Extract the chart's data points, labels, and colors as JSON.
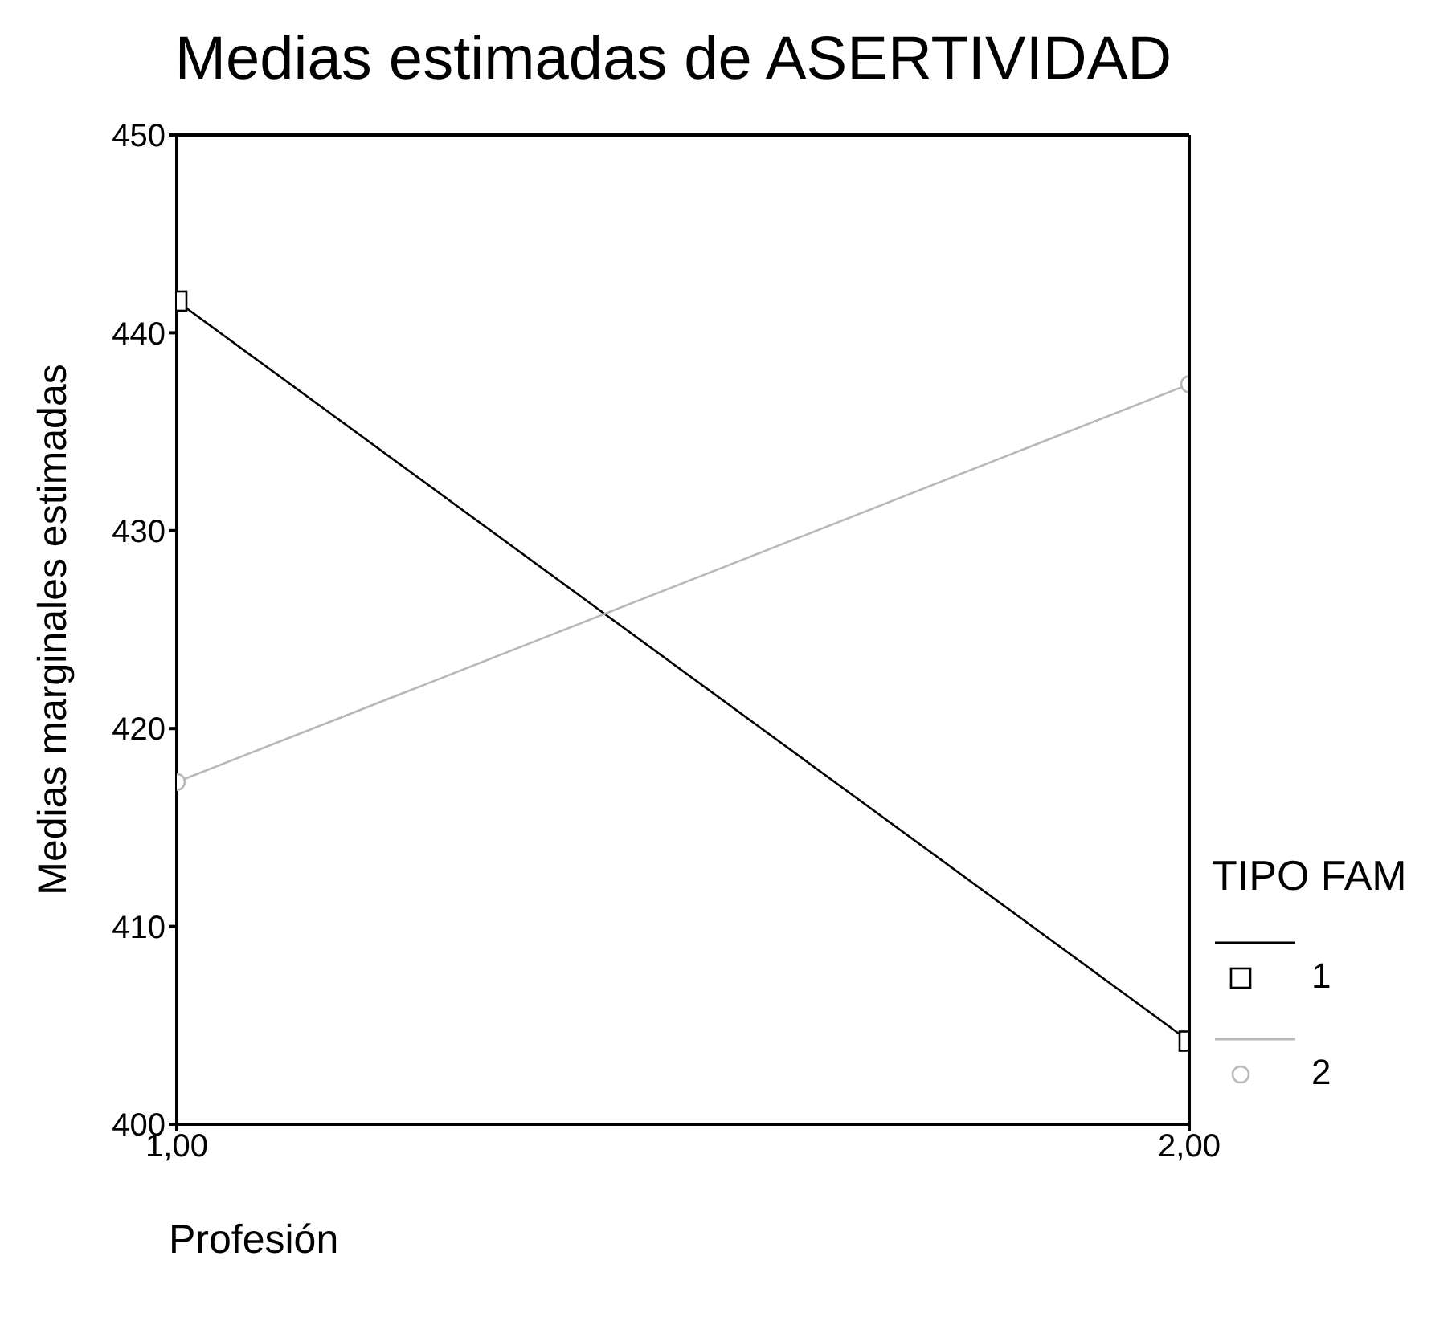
{
  "chart_data": {
    "type": "line",
    "title": "Medias estimadas de ASERTIVIDAD",
    "xlabel": "Profesión",
    "ylabel": "Medias marginales estimadas",
    "legend_title": "TIPO FAM",
    "legend": "right",
    "marker": "square",
    "x": [
      1,
      2
    ],
    "xlim": [
      1,
      2
    ],
    "xticks": [
      {
        "value": 1,
        "label": "1,00"
      },
      {
        "value": 2,
        "label": "2,00"
      }
    ],
    "ylim": [
      400,
      450
    ],
    "yticks": [
      400,
      410,
      420,
      430,
      440,
      450
    ],
    "grid": false,
    "series": [
      {
        "name": "1",
        "color": "#000000",
        "values": [
          441.6,
          404.2
        ]
      },
      {
        "name": "2",
        "color": "#b8b8b8",
        "marker": "circle",
        "values": [
          417.3,
          437.4
        ]
      }
    ]
  }
}
